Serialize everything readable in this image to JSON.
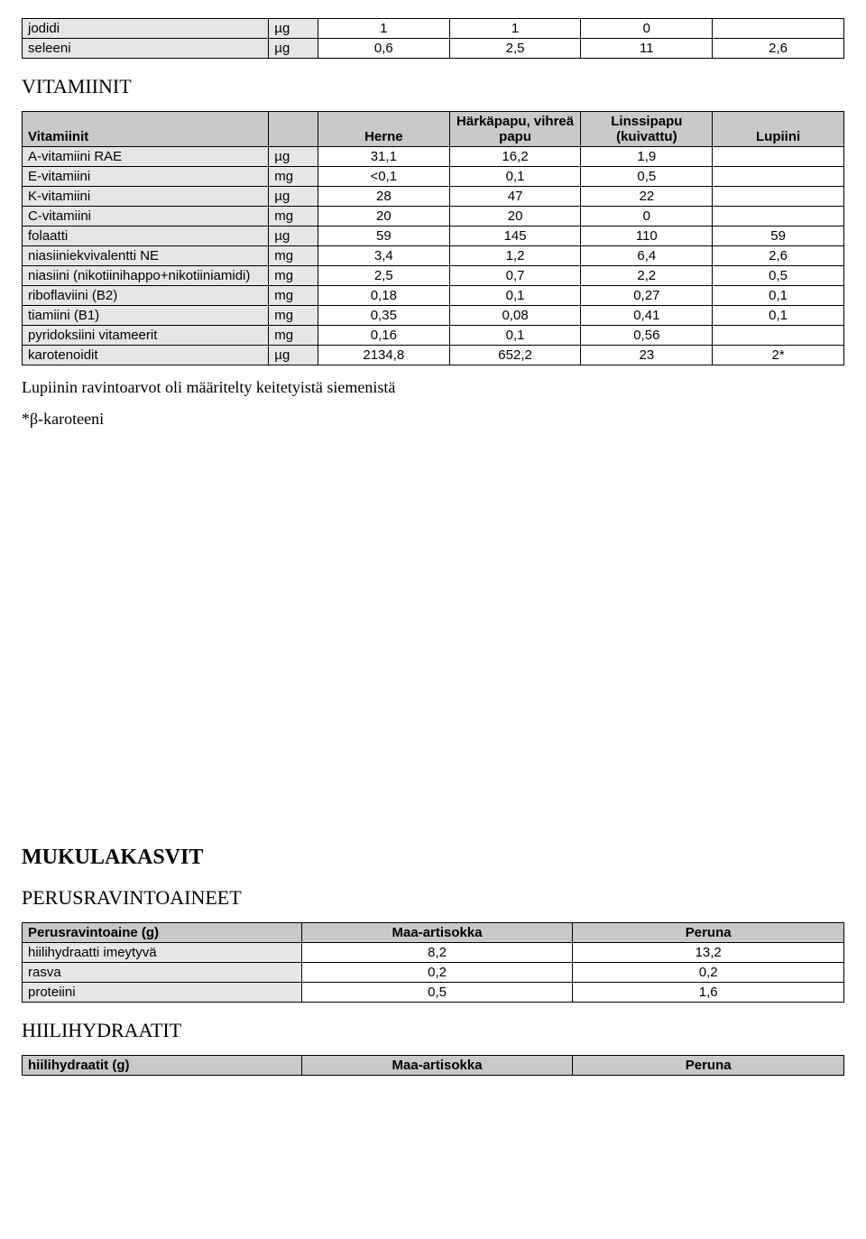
{
  "top_table": {
    "rows": [
      {
        "name": "jodidi",
        "unit": "µg",
        "v1": "1",
        "v2": "1",
        "v3": "0",
        "v4": ""
      },
      {
        "name": "seleeni",
        "unit": "µg",
        "v1": "0,6",
        "v2": "2,5",
        "v3": "11",
        "v4": "2,6"
      }
    ]
  },
  "vitamins_title": "VITAMIINIT",
  "vitamins_table": {
    "headers": {
      "name": "Vitamiinit",
      "unit": "",
      "c1": "Herne",
      "c2": "Härkäpapu, vihreä papu",
      "c3": "Linssipapu (kuivattu)",
      "c4": "Lupiini"
    },
    "rows": [
      {
        "name": "A-vitamiini RAE",
        "unit": "µg",
        "v1": "31,1",
        "v2": "16,2",
        "v3": "1,9",
        "v4": ""
      },
      {
        "name": "E-vitamiini",
        "unit": "mg",
        "v1": "<0,1",
        "v2": "0,1",
        "v3": "0,5",
        "v4": ""
      },
      {
        "name": "K-vitamiini",
        "unit": "µg",
        "v1": "28",
        "v2": "47",
        "v3": "22",
        "v4": ""
      },
      {
        "name": "C-vitamiini",
        "unit": "mg",
        "v1": "20",
        "v2": "20",
        "v3": "0",
        "v4": ""
      },
      {
        "name": "folaatti",
        "unit": "µg",
        "v1": "59",
        "v2": "145",
        "v3": "110",
        "v4": "59"
      },
      {
        "name": "niasiiniekvivalentti NE",
        "unit": "mg",
        "v1": "3,4",
        "v2": "1,2",
        "v3": "6,4",
        "v4": "2,6"
      },
      {
        "name": "niasiini (nikotiinihappo+nikotiiniamidi)",
        "unit": "mg",
        "v1": "2,5",
        "v2": "0,7",
        "v3": "2,2",
        "v4": "0,5"
      },
      {
        "name": "riboflaviini (B2)",
        "unit": "mg",
        "v1": "0,18",
        "v2": "0,1",
        "v3": "0,27",
        "v4": "0,1"
      },
      {
        "name": "tiamiini (B1)",
        "unit": "mg",
        "v1": "0,35",
        "v2": "0,08",
        "v3": "0,41",
        "v4": "0,1"
      },
      {
        "name": "pyridoksiini vitameerit",
        "unit": "mg",
        "v1": "0,16",
        "v2": "0,1",
        "v3": "0,56",
        "v4": ""
      },
      {
        "name": "karotenoidit",
        "unit": "µg",
        "v1": "2134,8",
        "v2": "652,2",
        "v3": "23",
        "v4": "2*"
      }
    ]
  },
  "note1": "Lupiinin ravintoarvot oli määritelty keitetyistä siemenistä",
  "note2": "*β-karoteeni",
  "tubers_title": "MUKULAKASVIT",
  "perus_title": "PERUSRAVINTOAINEET",
  "perus_table": {
    "headers": {
      "name": "Perusravintoaine (g)",
      "c1": "Maa-artisokka",
      "c2": "Peruna"
    },
    "rows": [
      {
        "name": "hiilihydraatti imeytyvä",
        "v1": "8,2",
        "v2": "13,2"
      },
      {
        "name": "rasva",
        "v1": "0,2",
        "v2": "0,2"
      },
      {
        "name": "proteiini",
        "v1": "0,5",
        "v2": "1,6"
      }
    ]
  },
  "hh_title": "HIILIHYDRAATIT",
  "hh_table": {
    "headers": {
      "name": "hiilihydraatit (g)",
      "c1": "Maa-artisokka",
      "c2": "Peruna"
    }
  }
}
